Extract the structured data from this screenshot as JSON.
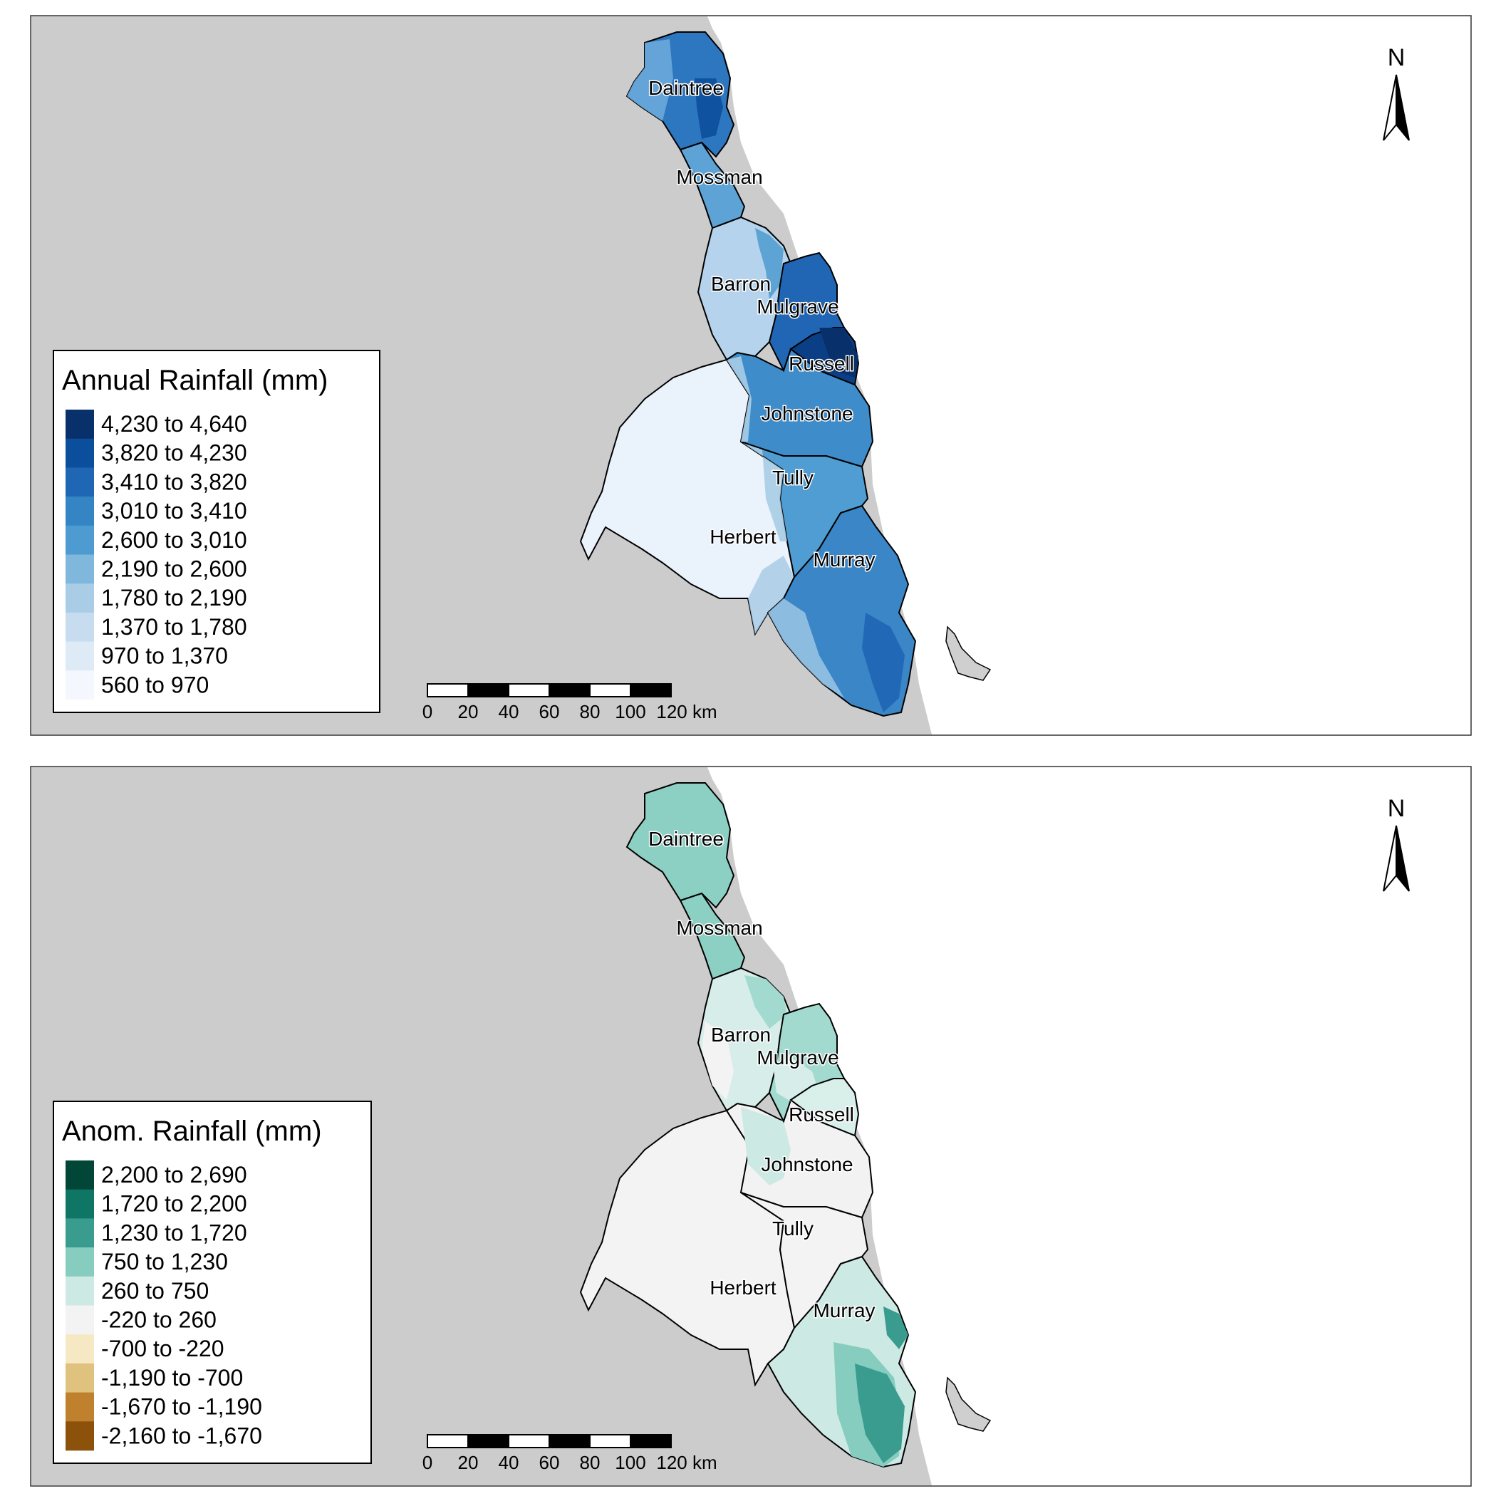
{
  "panels": [
    {
      "id": "annual",
      "north_label": "N",
      "legend": {
        "title": "Annual Rainfall (mm)",
        "classes": [
          {
            "label": "4,230 to 4,640",
            "color": "#08306b"
          },
          {
            "label": "3,820 to 4,230",
            "color": "#0b4f9c"
          },
          {
            "label": "3,410 to 3,820",
            "color": "#1f66b5"
          },
          {
            "label": "3,010 to 3,410",
            "color": "#3585c5"
          },
          {
            "label": "2,600 to 3,010",
            "color": "#4d9bd0"
          },
          {
            "label": "2,190 to 2,600",
            "color": "#80b8dd"
          },
          {
            "label": "1,780 to 2,190",
            "color": "#a9cde6"
          },
          {
            "label": "1,370 to 1,780",
            "color": "#c8dcf0"
          },
          {
            "label": "970 to 1,370",
            "color": "#deebf7"
          },
          {
            "label": "560 to 970",
            "color": "#f4f8fe"
          }
        ]
      },
      "scalebar": {
        "ticks": [
          "0",
          "20",
          "40",
          "60",
          "80",
          "100",
          "120 km"
        ]
      },
      "catchments": [
        {
          "name": "Daintree",
          "color": "#2d76c0"
        },
        {
          "name": "Mossman",
          "color": "#5ea3d6"
        },
        {
          "name": "Barron",
          "color": "#b5d3ec"
        },
        {
          "name": "Mulgrave",
          "color": "#2066b5"
        },
        {
          "name": "Russell",
          "color": "#0a3f86"
        },
        {
          "name": "Johnstone",
          "color": "#3f8ccb"
        },
        {
          "name": "Tully",
          "color": "#4f9dd2"
        },
        {
          "name": "Herbert",
          "color": "#eaf2fb"
        },
        {
          "name": "Murray",
          "color": "#3a86c7"
        }
      ]
    },
    {
      "id": "anomaly",
      "north_label": "N",
      "legend": {
        "title": "Anom. Rainfall (mm)",
        "classes": [
          {
            "label": "2,200 to 2,690",
            "color": "#014636"
          },
          {
            "label": "1,720 to 2,200",
            "color": "#0f7565"
          },
          {
            "label": "1,230 to 1,720",
            "color": "#3a9c8f"
          },
          {
            "label": "750 to 1,230",
            "color": "#86cdc0"
          },
          {
            "label": "260 to 750",
            "color": "#cde9e4"
          },
          {
            "label": "-220 to 260",
            "color": "#f3f3f3"
          },
          {
            "label": "-700 to -220",
            "color": "#f6e8c3"
          },
          {
            "label": "-1,190 to -700",
            "color": "#dfc27d"
          },
          {
            "label": "-1,670 to -1,190",
            "color": "#bf812d"
          },
          {
            "label": "-2,160 to -1,670",
            "color": "#8c510a"
          }
        ]
      },
      "scalebar": {
        "ticks": [
          "0",
          "20",
          "40",
          "60",
          "80",
          "100",
          "120 km"
        ]
      },
      "catchments": [
        {
          "name": "Daintree",
          "color": "#8ccfc3"
        },
        {
          "name": "Mossman",
          "color": "#8ccfc3"
        },
        {
          "name": "Barron",
          "color": "#d6ede9"
        },
        {
          "name": "Mulgrave",
          "color": "#a3dacf"
        },
        {
          "name": "Russell",
          "color": "#d8efea"
        },
        {
          "name": "Johnstone",
          "color": "#f2f2f2"
        },
        {
          "name": "Tully",
          "color": "#f3f3f3"
        },
        {
          "name": "Herbert",
          "color": "#f3f3f3"
        },
        {
          "name": "Murray",
          "color": "#cde9e4"
        }
      ]
    }
  ]
}
